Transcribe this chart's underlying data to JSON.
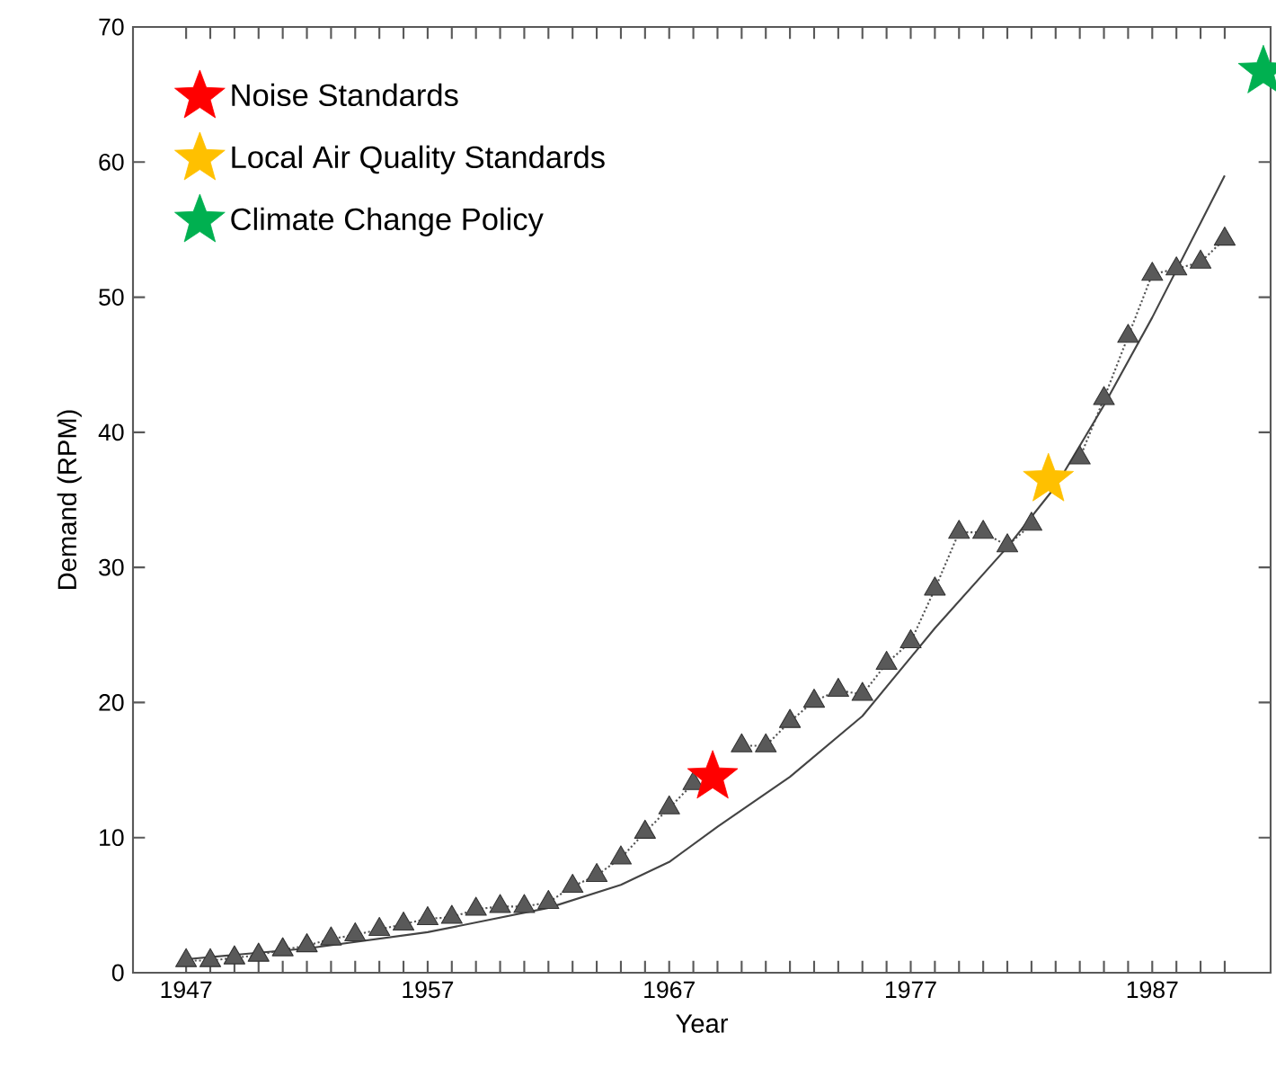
{
  "chart_data": {
    "type": "line",
    "xlabel": "Year",
    "ylabel": "Demand (RPM)",
    "xlim": [
      1944.8,
      1991.9
    ],
    "ylim": [
      0,
      70
    ],
    "xticks": [
      {
        "value": 1947,
        "label": "1947"
      },
      {
        "value": 1948,
        "label": null
      },
      {
        "value": 1949,
        "label": null
      },
      {
        "value": 1950,
        "label": null
      },
      {
        "value": 1951,
        "label": null
      },
      {
        "value": 1952,
        "label": null
      },
      {
        "value": 1953,
        "label": null
      },
      {
        "value": 1954,
        "label": null
      },
      {
        "value": 1955,
        "label": null
      },
      {
        "value": 1956,
        "label": null
      },
      {
        "value": 1957,
        "label": "1957"
      },
      {
        "value": 1958,
        "label": null
      },
      {
        "value": 1959,
        "label": null
      },
      {
        "value": 1960,
        "label": null
      },
      {
        "value": 1961,
        "label": null
      },
      {
        "value": 1962,
        "label": null
      },
      {
        "value": 1963,
        "label": null
      },
      {
        "value": 1964,
        "label": null
      },
      {
        "value": 1965,
        "label": null
      },
      {
        "value": 1966,
        "label": null
      },
      {
        "value": 1967,
        "label": "1967"
      },
      {
        "value": 1968,
        "label": null
      },
      {
        "value": 1969,
        "label": null
      },
      {
        "value": 1970,
        "label": null
      },
      {
        "value": 1971,
        "label": null
      },
      {
        "value": 1972,
        "label": null
      },
      {
        "value": 1973,
        "label": null
      },
      {
        "value": 1974,
        "label": null
      },
      {
        "value": 1975,
        "label": null
      },
      {
        "value": 1976,
        "label": null
      },
      {
        "value": 1977,
        "label": "1977"
      },
      {
        "value": 1978,
        "label": null
      },
      {
        "value": 1979,
        "label": null
      },
      {
        "value": 1980,
        "label": null
      },
      {
        "value": 1981,
        "label": null
      },
      {
        "value": 1982,
        "label": null
      },
      {
        "value": 1983,
        "label": null
      },
      {
        "value": 1984,
        "label": null
      },
      {
        "value": 1985,
        "label": null
      },
      {
        "value": 1986,
        "label": null
      },
      {
        "value": 1987,
        "label": "1987"
      },
      {
        "value": 1988,
        "label": null
      },
      {
        "value": 1989,
        "label": null
      },
      {
        "value": 1990,
        "label": null
      }
    ],
    "yticks": [
      0,
      10,
      20,
      30,
      40,
      50,
      60,
      70
    ],
    "grid": false,
    "legend": "top left",
    "series": [
      {
        "type": "line",
        "marker": "triangle",
        "line_style": "dotted",
        "color": "#555555",
        "x": [
          1947,
          1948,
          1949,
          1950,
          1951,
          1952,
          1953,
          1954,
          1955,
          1956,
          1957,
          1958,
          1959,
          1960,
          1961,
          1962,
          1963,
          1964,
          1965,
          1966,
          1967,
          1968,
          1969,
          1970,
          1971,
          1972,
          1973,
          1974,
          1975,
          1976,
          1977,
          1978,
          1979,
          1980,
          1981,
          1982,
          1983,
          1984,
          1985,
          1986,
          1987,
          1988,
          1989,
          1990
        ],
        "values": [
          0.9,
          0.9,
          1.1,
          1.3,
          1.7,
          2.0,
          2.5,
          2.8,
          3.2,
          3.6,
          4.0,
          4.1,
          4.7,
          4.9,
          4.9,
          5.2,
          6.4,
          7.2,
          8.5,
          10.4,
          12.2,
          14.0,
          null,
          16.8,
          16.8,
          18.6,
          20.1,
          20.9,
          20.6,
          22.9,
          24.5,
          28.4,
          32.6,
          32.6,
          31.6,
          33.2,
          null,
          38.1,
          42.5,
          47.1,
          51.7,
          52.1,
          52.6,
          54.3
        ]
      },
      {
        "type": "line",
        "marker": "none",
        "line_style": "solid",
        "color": "#444444",
        "x": [
          1947,
          1952,
          1957,
          1962,
          1965,
          1967,
          1969,
          1972,
          1975,
          1978,
          1981,
          1983,
          1985,
          1987,
          1989,
          1990
        ],
        "values": [
          1.0,
          1.8,
          3.0,
          4.8,
          6.5,
          8.2,
          10.8,
          14.5,
          19.0,
          25.5,
          31.5,
          36.0,
          42.0,
          48.5,
          55.5,
          59.0
        ]
      },
      {
        "name": "Noise Standards",
        "type": "scatter",
        "marker": "star",
        "color": "#ff0000",
        "x": [
          1968.8
        ],
        "values": [
          14.5
        ]
      },
      {
        "name": "Local Air Quality Standards",
        "type": "scatter",
        "marker": "star",
        "color": "#ffc000",
        "x": [
          1982.7
        ],
        "values": [
          36.5
        ]
      },
      {
        "name": "Climate Change Policy",
        "type": "scatter",
        "marker": "star",
        "color": "#00b050",
        "x": [
          1991.6
        ],
        "values": [
          66.7
        ]
      }
    ]
  }
}
